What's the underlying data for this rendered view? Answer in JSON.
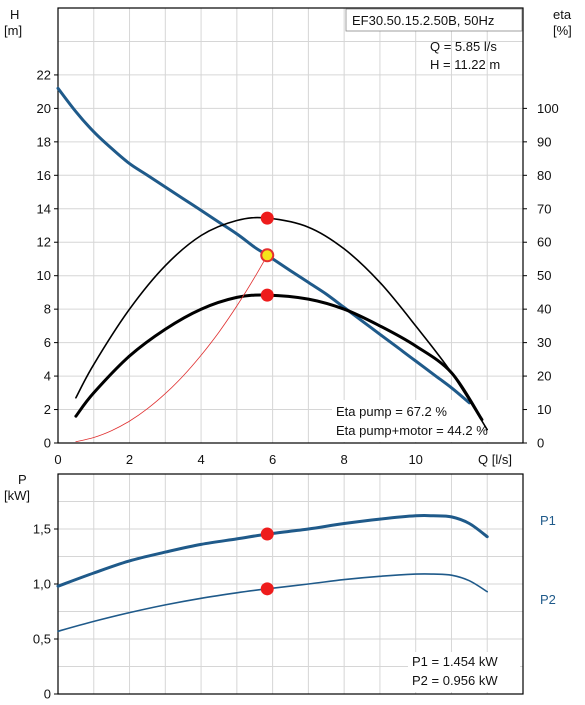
{
  "chart_data": [
    {
      "type": "line",
      "title": "EF30.50.15.2.50B, 50Hz",
      "xlabel": "Q [l/s]",
      "ylabel_left": "H",
      "ylabel_left_unit": "[m]",
      "ylabel_right": "eta",
      "ylabel_right_unit": "[%]",
      "xlim": [
        0,
        13
      ],
      "ylim_left": [
        0,
        26
      ],
      "ylim_right": [
        0,
        130
      ],
      "x_ticks": [
        "0",
        "2",
        "4",
        "6",
        "8",
        "10"
      ],
      "y_left_ticks": [
        "0",
        "2",
        "4",
        "6",
        "8",
        "10",
        "12",
        "14",
        "16",
        "18",
        "20",
        "22"
      ],
      "y_right_ticks": [
        "0",
        "10",
        "20",
        "30",
        "40",
        "50",
        "60",
        "70",
        "80",
        "90",
        "100"
      ],
      "grid": true,
      "operating_point": {
        "q_label": "Q = 5.85 l/s",
        "h_label": "H = 11.22 m",
        "q": 5.85,
        "h": 11.22
      },
      "annotations": [
        "Eta pump = 67.2 %",
        "Eta pump+motor = 44.2 %"
      ],
      "series": [
        {
          "role": "head",
          "axis": "left",
          "color": "#1f5a8a",
          "x": [
            0,
            0.5,
            1,
            1.5,
            2,
            2.5,
            3,
            3.5,
            4,
            4.5,
            5,
            5.5,
            5.85,
            6.5,
            7,
            7.5,
            8,
            8.5,
            9,
            9.5,
            10,
            10.5,
            11,
            11.5
          ],
          "y": [
            21.2,
            19.8,
            18.6,
            17.6,
            16.7,
            16.0,
            15.3,
            14.6,
            13.9,
            13.2,
            12.5,
            11.7,
            11.22,
            10.3,
            9.6,
            8.9,
            8.1,
            7.3,
            6.5,
            5.7,
            4.9,
            4.1,
            3.3,
            2.4
          ]
        },
        {
          "role": "eta-pump",
          "axis": "right",
          "color": "#000000",
          "x": [
            0.5,
            1,
            2,
            3,
            4,
            5,
            5.85,
            7,
            8,
            9,
            10,
            11,
            12
          ],
          "y": [
            13.5,
            23.5,
            40,
            53,
            62,
            66.5,
            67.2,
            64.5,
            58,
            48,
            35,
            21,
            4
          ]
        },
        {
          "role": "eta-pump-motor",
          "axis": "right",
          "color": "#000000",
          "x": [
            0.5,
            1,
            2,
            3,
            4,
            5,
            5.85,
            7,
            8,
            9,
            10,
            11,
            11.85
          ],
          "y": [
            8,
            15,
            26,
            34,
            40,
            43.5,
            44.2,
            43,
            40,
            35,
            29,
            21,
            7
          ]
        },
        {
          "role": "system-curve",
          "axis": "left",
          "color": "#e03030",
          "x": [
            0.5,
            1,
            1.5,
            2,
            2.5,
            3,
            3.5,
            4,
            4.5,
            5,
            5.5,
            5.85
          ],
          "y": [
            0.08,
            0.33,
            0.74,
            1.31,
            2.05,
            2.95,
            4.01,
            5.24,
            6.63,
            8.19,
            9.91,
            11.22
          ]
        }
      ],
      "markers": [
        {
          "x": 5.85,
          "y": 67.2,
          "axis": "right"
        },
        {
          "x": 5.85,
          "y": 11.22,
          "axis": "left",
          "hollow": true
        },
        {
          "x": 5.85,
          "y": 44.2,
          "axis": "right"
        }
      ]
    },
    {
      "type": "line",
      "ylabel": "P",
      "ylabel_unit": "[kW]",
      "xlim": [
        0,
        13
      ],
      "ylim": [
        0,
        2
      ],
      "y_ticks": [
        "0",
        "0,5",
        "1,0",
        "1,5"
      ],
      "grid": true,
      "annotations": [
        "P1 = 1.454 kW",
        "P2 = 0.956 kW"
      ],
      "series": [
        {
          "name": "P1",
          "color": "#1f5a8a",
          "x": [
            0,
            1,
            2,
            3,
            4,
            5,
            5.85,
            7,
            8,
            9,
            10,
            10.5,
            11,
            11.5,
            12
          ],
          "y": [
            0.98,
            1.1,
            1.21,
            1.29,
            1.36,
            1.41,
            1.454,
            1.5,
            1.55,
            1.59,
            1.62,
            1.62,
            1.61,
            1.55,
            1.43
          ]
        },
        {
          "name": "P2",
          "color": "#1f5a8a",
          "x": [
            0,
            1,
            2,
            3,
            4,
            5,
            5.85,
            7,
            8,
            9,
            10,
            10.5,
            11,
            11.5,
            12
          ],
          "y": [
            0.57,
            0.66,
            0.74,
            0.81,
            0.87,
            0.92,
            0.956,
            1.0,
            1.04,
            1.07,
            1.09,
            1.09,
            1.08,
            1.03,
            0.93
          ]
        }
      ],
      "markers": [
        {
          "x": 5.85,
          "y": 1.454
        },
        {
          "x": 5.85,
          "y": 0.956
        }
      ]
    }
  ]
}
